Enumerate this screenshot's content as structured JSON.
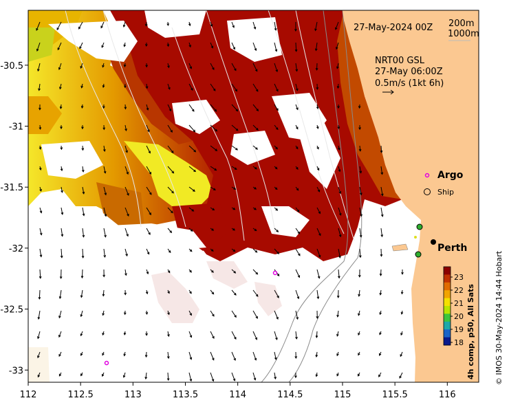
{
  "map": {
    "lon_range": [
      112,
      116.3
    ],
    "lat_range": [
      -33.1,
      -30.05
    ],
    "x_ticks": [
      "112",
      "112.5",
      "113",
      "113.5",
      "114",
      "114.5",
      "115",
      "115.5",
      "116"
    ],
    "x_tick_values": [
      112,
      112.5,
      113,
      113.5,
      114,
      114.5,
      115,
      115.5,
      116
    ],
    "y_ticks": [
      "-30.5",
      "-31",
      "-31.5",
      "-32",
      "-32.5",
      "-33"
    ],
    "y_tick_values": [
      -30.5,
      -31,
      -31.5,
      -32,
      -32.5,
      -33
    ],
    "land_color": "#fbc891",
    "sst_colors": {
      "warm": "#a60000",
      "mid": "#d97a00",
      "cool": "#eeee22"
    }
  },
  "annotations": {
    "date": "27-May-2024 00Z",
    "depth_200": "200m",
    "depth_1000": "1000m",
    "current_source": "NRT00 GSL",
    "current_time": "27-May 06:00Z",
    "current_scale": "0.5m/s (1kt 6h)"
  },
  "legend": {
    "argo": "Argo",
    "ship": "Ship",
    "city": "Perth"
  },
  "colorbar": {
    "labels": [
      "23",
      "22",
      "21",
      "20",
      "19",
      "18"
    ],
    "title": "4h comp, p50, All Sats",
    "colors": [
      "#8b0000",
      "#c03000",
      "#e06a00",
      "#f2a400",
      "#f4e000",
      "#b8e400",
      "#3cc43c",
      "#1ea8a8",
      "#1a64c8",
      "#0a1a8c"
    ]
  },
  "credit": "© IMOS 30-May-2024 14:44 Hobart"
}
